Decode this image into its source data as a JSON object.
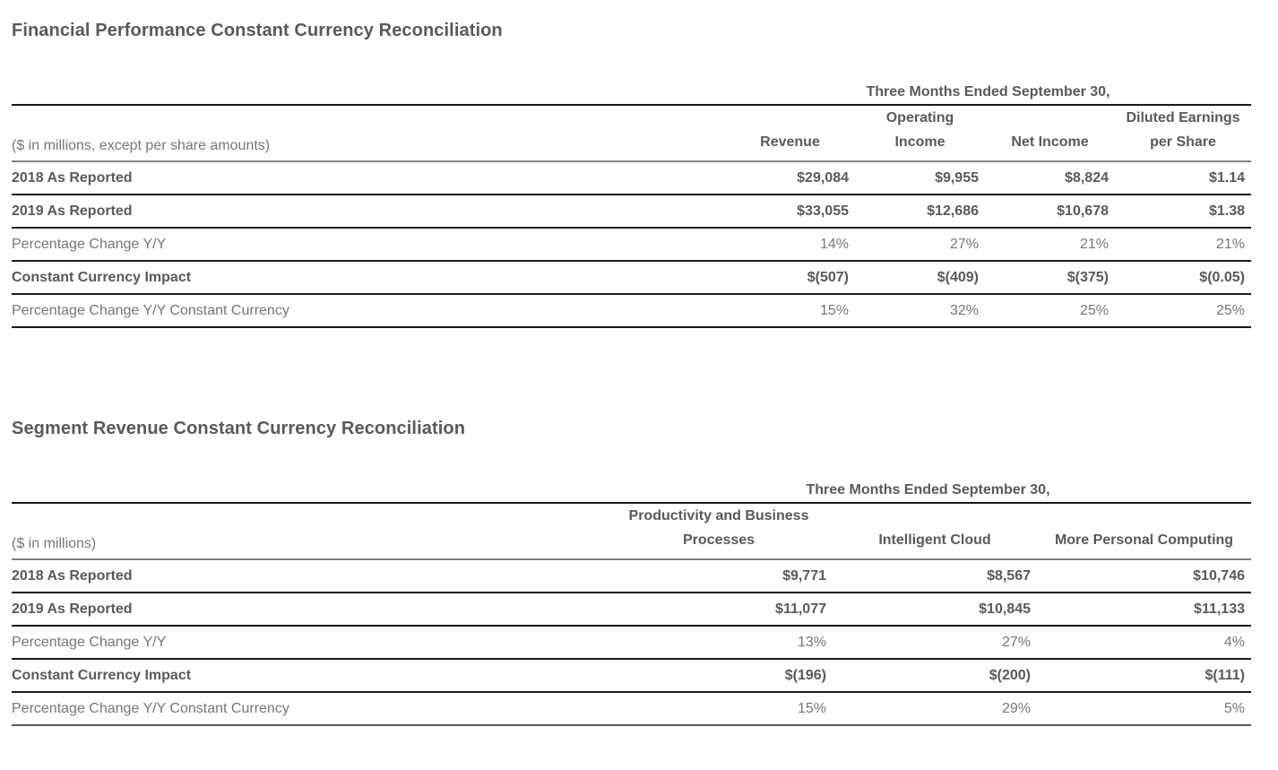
{
  "page": {
    "background": "#ffffff",
    "text_color": "#595959",
    "muted_text_color": "#767676",
    "rule_dark_color": "#1a1a1a",
    "rule_gray_color": "#7f7f7f"
  },
  "tables": [
    {
      "title": "Financial Performance Constant Currency Reconciliation",
      "period_header": "Three Months Ended September 30,",
      "unit_label": "($ in millions, except per share amounts)",
      "columns": [
        {
          "lines": [
            "Revenue"
          ]
        },
        {
          "lines": [
            "Operating",
            "Income"
          ]
        },
        {
          "lines": [
            "Net Income"
          ]
        },
        {
          "lines": [
            "Diluted Earnings",
            "per Share"
          ]
        }
      ],
      "rows": [
        {
          "label": "2018 As Reported",
          "style": "strong",
          "values": [
            "$29,084",
            "$9,955",
            "$8,824",
            "$1.14"
          ]
        },
        {
          "label": "2019 As Reported",
          "style": "strong",
          "values": [
            "$33,055",
            "$12,686",
            "$10,678",
            "$1.38"
          ]
        },
        {
          "label": "Percentage Change Y/Y",
          "style": "muted",
          "values": [
            "14%",
            "27%",
            "21%",
            "21%"
          ]
        },
        {
          "label": "Constant Currency Impact",
          "style": "strong",
          "values": [
            "$(507)",
            "$(409)",
            "$(375)",
            "$(0.05)"
          ]
        },
        {
          "label": "Percentage Change Y/Y Constant Currency",
          "style": "muted",
          "values": [
            "15%",
            "32%",
            "25%",
            "25%"
          ]
        }
      ]
    },
    {
      "title": "Segment Revenue Constant Currency Reconciliation",
      "period_header": "Three Months Ended September 30,",
      "unit_label": "($ in millions)",
      "columns": [
        {
          "lines": [
            "Productivity and Business",
            "Processes"
          ]
        },
        {
          "lines": [
            "Intelligent Cloud"
          ]
        },
        {
          "lines": [
            "More Personal Computing"
          ]
        }
      ],
      "rows": [
        {
          "label": "2018 As Reported",
          "style": "strong",
          "values": [
            "$9,771",
            "$8,567",
            "$10,746"
          ]
        },
        {
          "label": "2019 As Reported",
          "style": "strong",
          "values": [
            "$11,077",
            "$10,845",
            "$11,133"
          ]
        },
        {
          "label": "Percentage Change Y/Y",
          "style": "muted",
          "values": [
            "13%",
            "27%",
            "4%"
          ]
        },
        {
          "label": "Constant Currency Impact",
          "style": "strong",
          "values": [
            "$(196)",
            "$(200)",
            "$(111)"
          ]
        },
        {
          "label": "Percentage Change Y/Y Constant Currency",
          "style": "muted",
          "values": [
            "15%",
            "29%",
            "5%"
          ]
        }
      ]
    }
  ]
}
